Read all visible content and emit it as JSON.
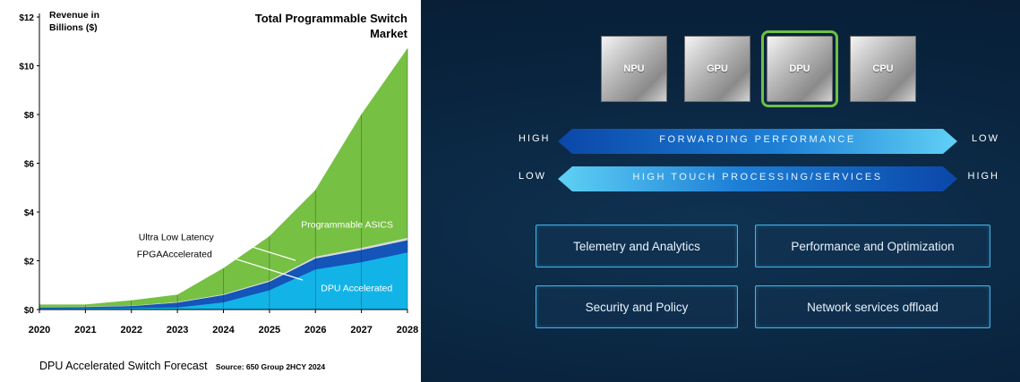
{
  "chart_data": {
    "type": "area",
    "title": "Total Programmable Switch Market",
    "ylabel": "Revenue in Billions ($)",
    "x": [
      "2020",
      "2021",
      "2022",
      "2023",
      "2024",
      "2025",
      "2026",
      "2027",
      "2028"
    ],
    "ylim": [
      0,
      12
    ],
    "yticks": [
      "$0",
      "$2",
      "$4",
      "$6",
      "$8",
      "$10",
      "$12"
    ],
    "stacked": true,
    "series": [
      {
        "name": "DPU Accelerated",
        "color": "#12b4e8",
        "values": [
          0.05,
          0.06,
          0.07,
          0.09,
          0.3,
          0.8,
          1.65,
          1.95,
          2.35
        ]
      },
      {
        "name": "FPGAAccelerated",
        "color": "#1554b8",
        "values": [
          0.05,
          0.05,
          0.08,
          0.2,
          0.3,
          0.35,
          0.45,
          0.5,
          0.5
        ]
      },
      {
        "name": "Ultra Low Latency",
        "color": "#d9d9d9",
        "values": [
          0.02,
          0.02,
          0.02,
          0.03,
          0.04,
          0.05,
          0.08,
          0.09,
          0.1
        ]
      },
      {
        "name": "Programmable ASICS",
        "color": "#76c043",
        "values": [
          0.08,
          0.07,
          0.2,
          0.28,
          1.05,
          1.8,
          2.72,
          5.46,
          7.75
        ]
      }
    ],
    "annotations": [
      {
        "text": "Programmable ASICS",
        "x": "2026",
        "y": 3.5
      },
      {
        "text": "Ultra Low Latency",
        "x": "2022",
        "y": 3.0
      },
      {
        "text": "FPGAAccelerated",
        "x": "2022",
        "y": 2.3
      },
      {
        "text": "DPU Accelerated",
        "x": "2027",
        "y": 0.9
      }
    ],
    "grid": false,
    "legend": "none",
    "footer_title": "DPU Accelerated Switch Forecast",
    "source": "Source: 650 Group 2HCY 2024"
  },
  "chips": [
    {
      "label": "NPU",
      "highlight": false
    },
    {
      "label": "GPU",
      "highlight": false
    },
    {
      "label": "DPU",
      "highlight": true
    },
    {
      "label": "CPU",
      "highlight": false
    }
  ],
  "arrows": [
    {
      "left": "HIGH",
      "label": "FORWARDING PERFORMANCE",
      "right": "LOW"
    },
    {
      "left": "LOW",
      "label": "HIGH TOUCH PROCESSING/SERVICES",
      "right": "HIGH"
    }
  ],
  "features": [
    "Telemetry and Analytics",
    "Performance and Optimization",
    "Security and Policy",
    "Network services offload"
  ],
  "colors": {
    "highlight_outline": "#6ec044",
    "arrow_dark": "#0b47a8",
    "arrow_light": "#5fd1f5",
    "box_border": "#3fb6e8"
  }
}
